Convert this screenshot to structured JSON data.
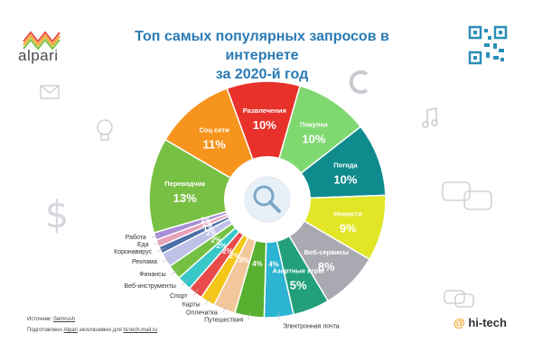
{
  "header": {
    "title_line1": "Топ самых популярных запросов в интернете",
    "title_line2": "за 2020-й год",
    "logo_text": "alpari"
  },
  "footer": {
    "source_label": "Источник:",
    "source_value": "Semrush",
    "prepared_prefix": "Подготовлено",
    "prepared_brand": "Alpari",
    "prepared_mid": "эксклюзивно для",
    "prepared_site": "hi-tech.mail.ru",
    "brand_at": "@",
    "brand_name": "hi-tech"
  },
  "icons": [
    "magnifier-icon",
    "envelope-icon",
    "lightbulb-icon",
    "dollar-icon",
    "music-note-icon",
    "chat-bubbles-icon",
    "qr-code-icon",
    "megaphone-icon"
  ],
  "chart_data": {
    "type": "pie",
    "variant": "donut",
    "slices": [
      {
        "label": "Развлечения",
        "value_label": "10%",
        "value": 10,
        "color": "#e8312a"
      },
      {
        "label": "Покупки",
        "value_label": "10%",
        "value": 10,
        "color": "#7fd870"
      },
      {
        "label": "Погода",
        "value_label": "10%",
        "value": 10,
        "color": "#0f8b8d"
      },
      {
        "label": "Новости",
        "value_label": "9%",
        "value": 9,
        "color": "#e1e627"
      },
      {
        "label": "Веб-сервисы",
        "value_label": "8%",
        "value": 8,
        "color": "#a9a9b2"
      },
      {
        "label": "Азартные игры",
        "value_label": "5%",
        "value": 5,
        "color": "#22a07a"
      },
      {
        "label": "Электронная почта",
        "value_label": "4%",
        "value": 4,
        "color": "#2cb4d2"
      },
      {
        "label": "Путешествия",
        "value_label": "4%",
        "value": 4,
        "color": "#58b030"
      },
      {
        "label": "Оплечатка",
        "value_label": "3%",
        "value": 3,
        "color": "#f2c79a"
      },
      {
        "label": "Карты",
        "value_label": "2%",
        "value": 2,
        "color": "#f3c617"
      },
      {
        "label": "Спорт",
        "value_label": "2%",
        "value": 2,
        "color": "#e94b4b"
      },
      {
        "label": "Веб-инструменты",
        "value_label": "2%",
        "value": 2,
        "color": "#39c7c8"
      },
      {
        "label": "Финансы",
        "value_label": "2%",
        "value": 2,
        "color": "#74c043"
      },
      {
        "label": "Реклама",
        "value_label": "2%",
        "value": 2,
        "color": "#bfc2e6"
      },
      {
        "label": "Коронавирус",
        "value_label": "1%",
        "value": 1,
        "color": "#4a6ea8"
      },
      {
        "label": "Еда",
        "value_label": "1%",
        "value": 1,
        "color": "#e8a0b8"
      },
      {
        "label": "Работа",
        "value_label": "1%",
        "value": 1,
        "color": "#a78ed6"
      },
      {
        "label": "Переводчик",
        "value_label": "13%",
        "value": 13,
        "color": "#78c044"
      },
      {
        "label": "Соц сети",
        "value_label": "11%",
        "value": 11,
        "color": "#f7941d"
      }
    ]
  }
}
